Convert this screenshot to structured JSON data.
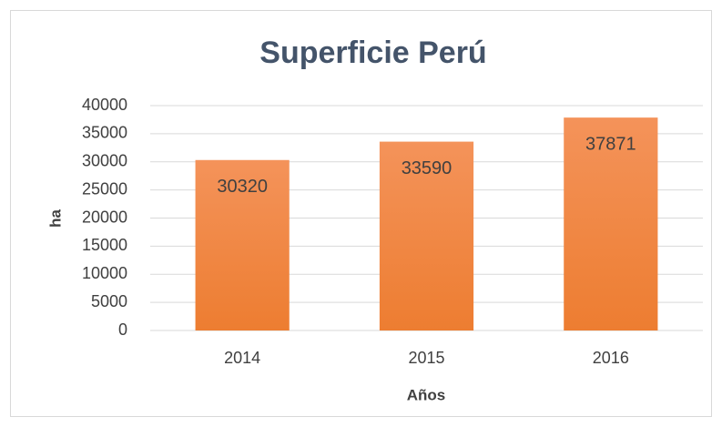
{
  "chart_data": {
    "type": "bar",
    "title": "Superficie Perú",
    "x_label": "Años",
    "y_label": "ha",
    "categories": [
      "2014",
      "2015",
      "2016"
    ],
    "values": [
      30320,
      33590,
      37871
    ],
    "color": "#ed7d31",
    "ylim": [
      0,
      40000
    ],
    "yticks": [
      0,
      5000,
      10000,
      15000,
      20000,
      25000,
      30000,
      35000,
      40000
    ],
    "grid": true
  }
}
